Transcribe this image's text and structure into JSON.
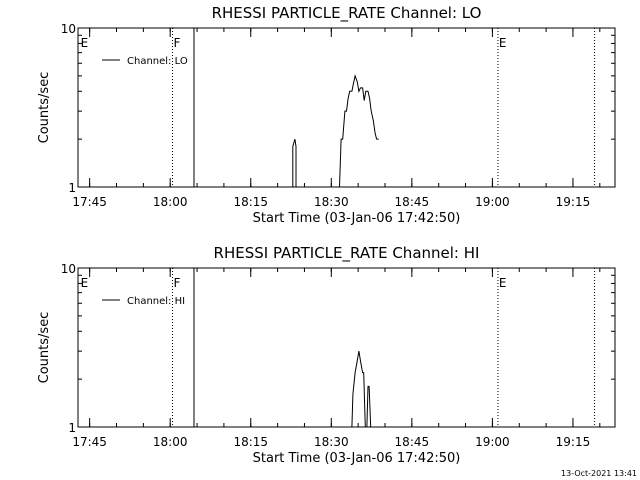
{
  "timestamp": "13-Oct-2021 13:41",
  "chart_data": [
    {
      "type": "line",
      "title": "RHESSI PARTICLE_RATE Channel: LO",
      "xlabel": "Start Time (03-Jan-06 17:42:50)",
      "ylabel": "Counts/sec",
      "x_unit": "minutes since 17:42:50",
      "xlim": [
        0,
        100
      ],
      "ylim": [
        1,
        10
      ],
      "yscale": "log",
      "x_ticks": [
        "17:45",
        "18:00",
        "18:15",
        "18:30",
        "18:45",
        "19:00",
        "19:15"
      ],
      "x_tick_minutes": [
        2.17,
        17.17,
        32.17,
        47.17,
        62.17,
        77.17,
        92.17
      ],
      "y_ticks": [
        "1",
        "10"
      ],
      "y_tick_values": [
        1,
        10
      ],
      "legend": {
        "label": "Channel: LO",
        "position": "top-left"
      },
      "markers": [
        {
          "label": "E",
          "x": 0.3,
          "style": "none"
        },
        {
          "label": "F",
          "x": 17.6,
          "style": "dotted"
        },
        {
          "label": "",
          "x": 21.6,
          "style": "solid"
        },
        {
          "label": "E",
          "x": 78.2,
          "style": "dotted"
        },
        {
          "label": "",
          "x": 96.2,
          "style": "dotted"
        }
      ],
      "series": [
        {
          "segments": [
            {
              "x": [
                40.0,
                40.0,
                40.4,
                40.6,
                40.6
              ],
              "y": [
                1.0,
                1.8,
                2.0,
                1.8,
                1.0
              ]
            },
            {
              "x": [
                48.7,
                49.0,
                49.3,
                49.7,
                50.0,
                50.3,
                50.6,
                51.0,
                51.3,
                51.6,
                52.0,
                52.3,
                52.6,
                53.0,
                53.3,
                53.6,
                54.0,
                54.3,
                54.6,
                55.0,
                55.3,
                55.6,
                56.0
              ],
              "y": [
                1.0,
                2.0,
                2.0,
                3.0,
                3.0,
                3.6,
                4.0,
                4.0,
                4.5,
                5.0,
                4.6,
                4.0,
                4.2,
                4.2,
                3.5,
                4.0,
                4.0,
                3.6,
                3.0,
                2.6,
                2.2,
                2.0,
                2.0
              ]
            }
          ]
        }
      ]
    },
    {
      "type": "line",
      "title": "RHESSI PARTICLE_RATE Channel: HI",
      "xlabel": "Start Time (03-Jan-06 17:42:50)",
      "ylabel": "Counts/sec",
      "x_unit": "minutes since 17:42:50",
      "xlim": [
        0,
        100
      ],
      "ylim": [
        1,
        10
      ],
      "yscale": "log",
      "x_ticks": [
        "17:45",
        "18:00",
        "18:15",
        "18:30",
        "18:45",
        "19:00",
        "19:15"
      ],
      "x_tick_minutes": [
        2.17,
        17.17,
        32.17,
        47.17,
        62.17,
        77.17,
        92.17
      ],
      "y_ticks": [
        "1",
        "10"
      ],
      "y_tick_values": [
        1,
        10
      ],
      "legend": {
        "label": "Channel: HI",
        "position": "top-left"
      },
      "markers": [
        {
          "label": "E",
          "x": 0.3,
          "style": "none"
        },
        {
          "label": "F",
          "x": 17.6,
          "style": "dotted"
        },
        {
          "label": "",
          "x": 21.6,
          "style": "solid"
        },
        {
          "label": "E",
          "x": 78.2,
          "style": "dotted"
        },
        {
          "label": "",
          "x": 96.2,
          "style": "dotted"
        }
      ],
      "series": [
        {
          "segments": [
            {
              "x": [
                51.0,
                51.2,
                51.6,
                52.0,
                52.3,
                52.6,
                53.0,
                53.2,
                53.5,
                53.8,
                54.0,
                54.2,
                54.5,
                54.8
              ],
              "y": [
                1.0,
                1.6,
                2.2,
                2.6,
                3.0,
                2.6,
                2.2,
                2.2,
                1.0,
                1.0,
                1.8,
                1.8,
                1.0,
                1.0
              ]
            }
          ]
        }
      ]
    }
  ]
}
